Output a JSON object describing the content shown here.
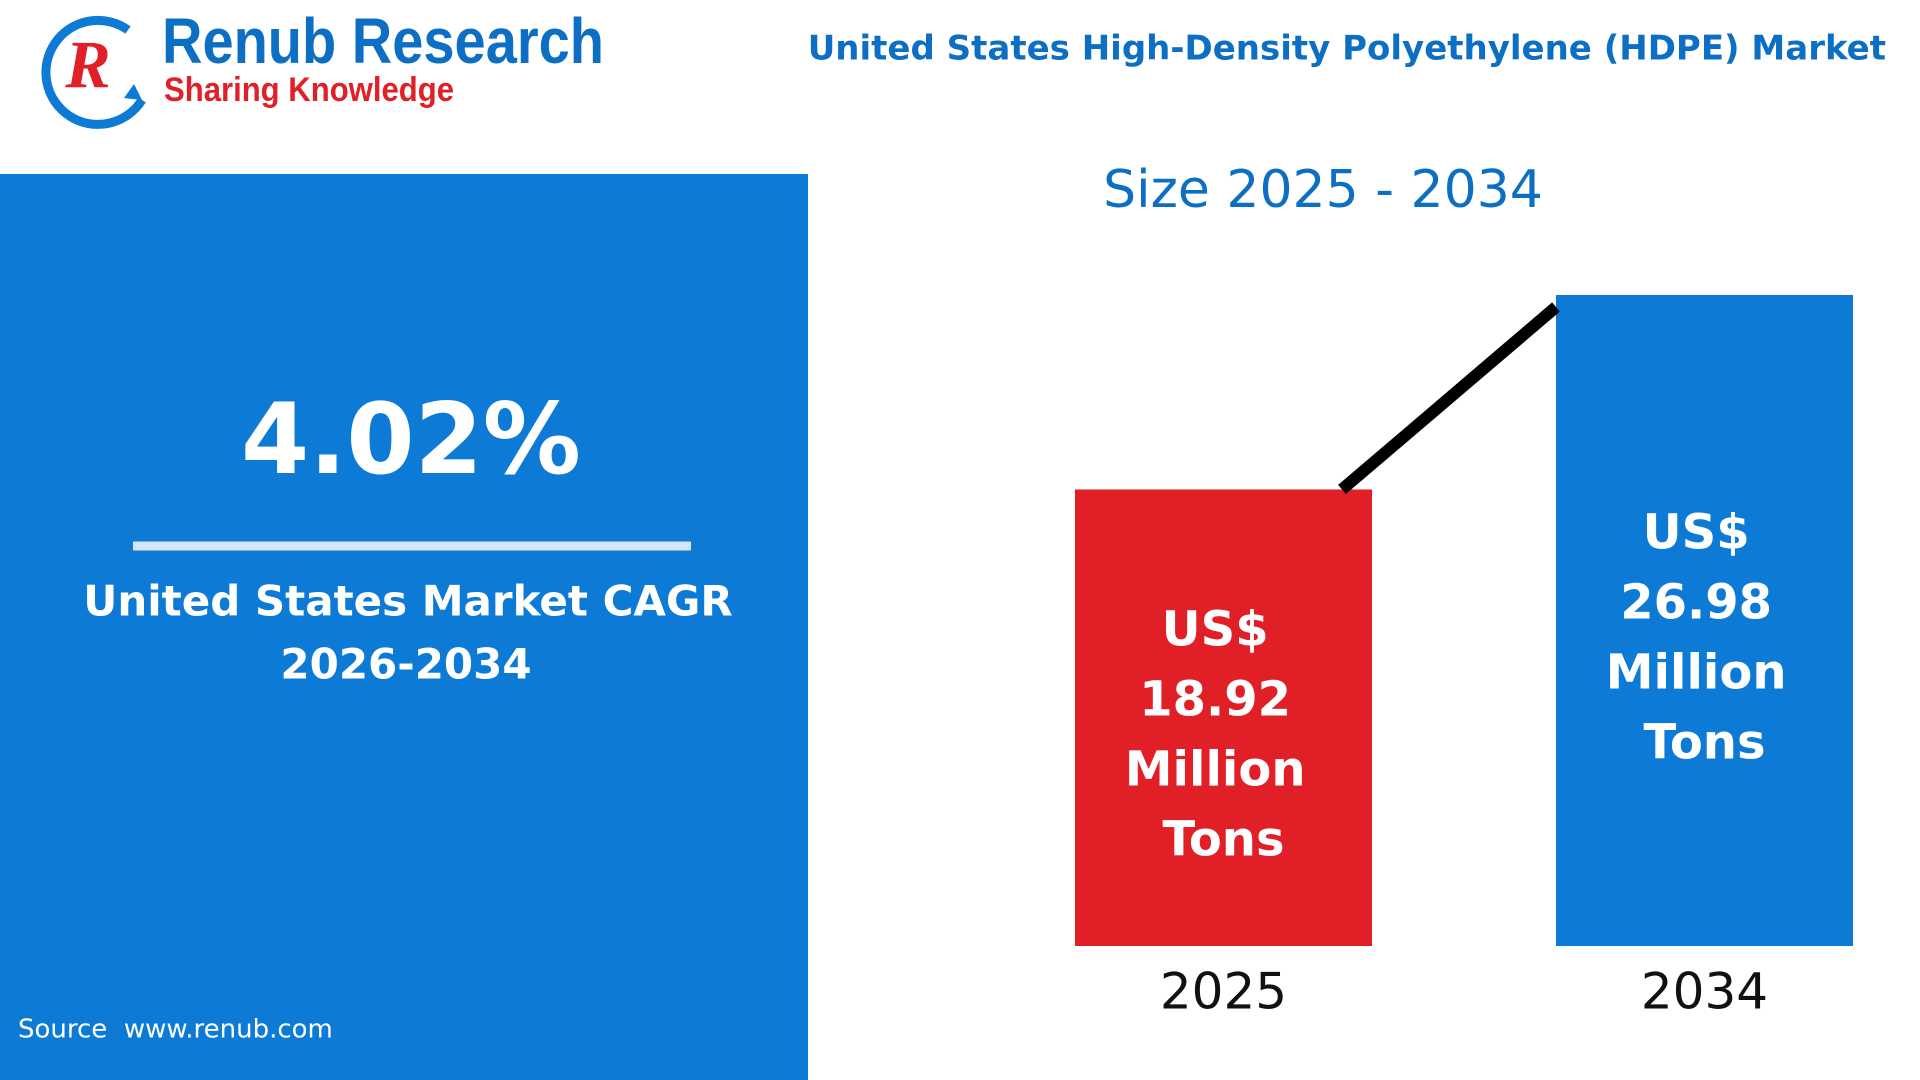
{
  "header": {
    "brand": "Renub Research",
    "tagline": "Sharing Knowledge",
    "title": "United States High-Density Polyethylene (HDPE) Market"
  },
  "cagr": {
    "value": "4.02%",
    "label": "United States Market CAGR",
    "period": "2026-2034"
  },
  "source": "Source  www.renub.com",
  "chart_data": {
    "type": "bar",
    "title": "Size 2025 - 2034",
    "categories": [
      "2025",
      "2034"
    ],
    "values": [
      18.92,
      26.98
    ],
    "value_labels": [
      "US$ 18.92 Million Tons",
      "US$ 26.98 Million Tons"
    ],
    "colors": [
      "#e11f26",
      "#0d7bd6"
    ]
  }
}
